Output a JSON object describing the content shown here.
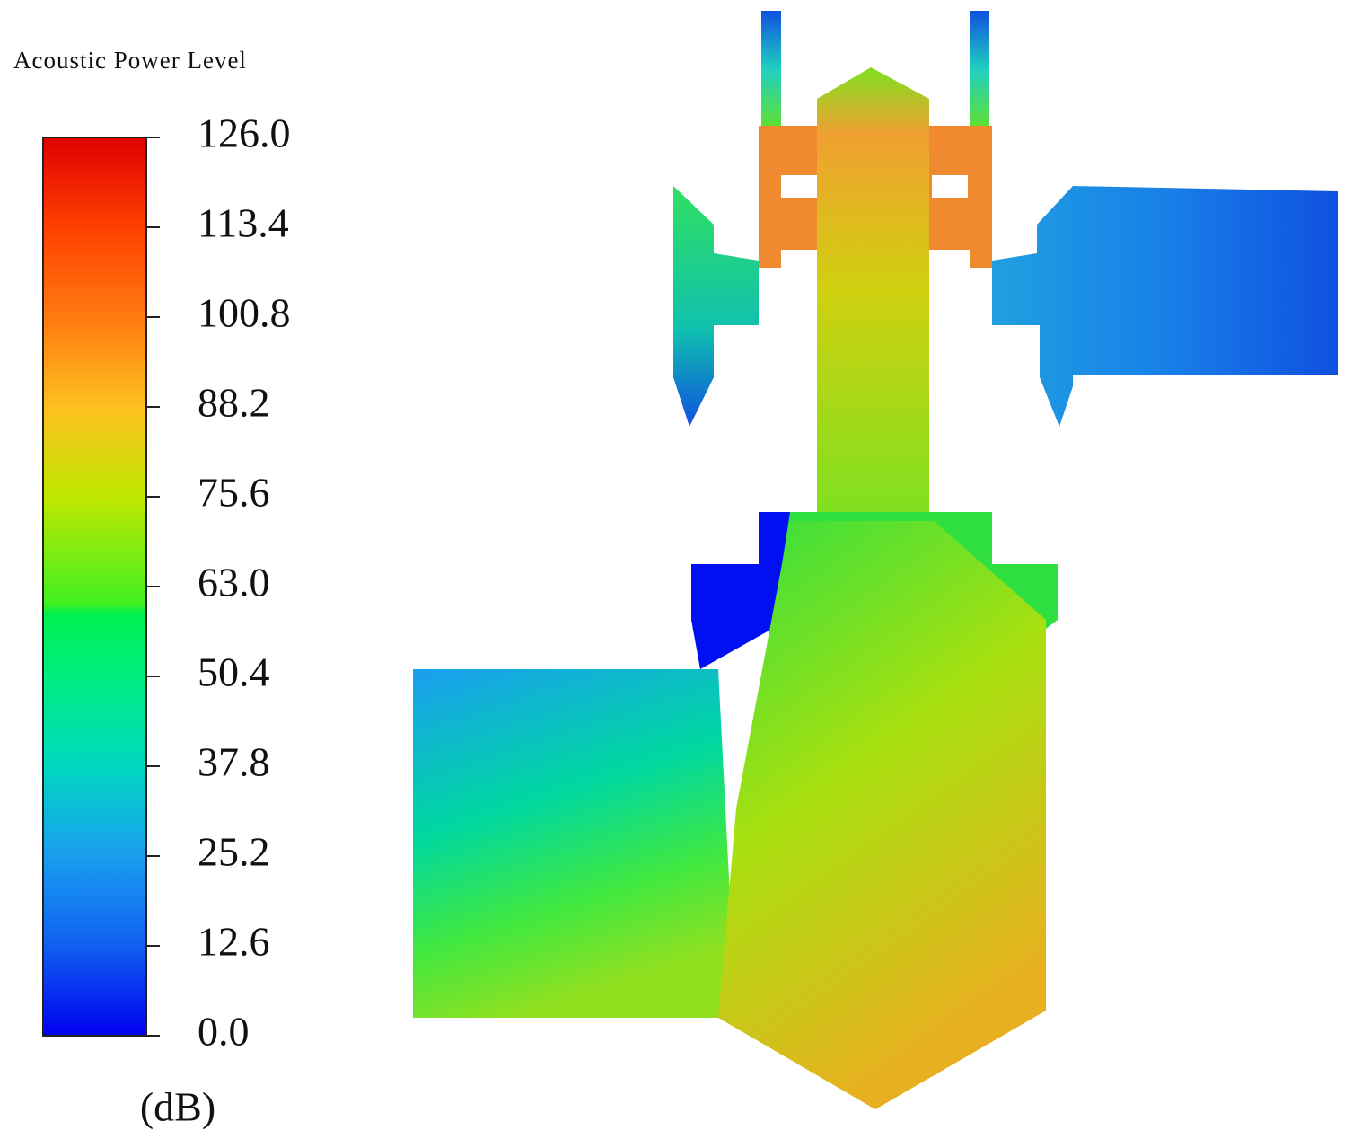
{
  "chart_data": {
    "type": "contour",
    "title": "Acoustic Power Level",
    "unit": "(dB)",
    "clim": [
      0,
      126
    ],
    "cticks": [
      {
        "value": 0,
        "label": "0.0"
      },
      {
        "value": 12.6,
        "label": "12.6"
      },
      {
        "value": 25.2,
        "label": "25.2"
      },
      {
        "value": 37.8,
        "label": "37.8"
      },
      {
        "value": 50.4,
        "label": "50.4"
      },
      {
        "value": 63,
        "label": "63.0"
      },
      {
        "value": 75.6,
        "label": "75.6"
      },
      {
        "value": 88.2,
        "label": "88.2"
      },
      {
        "value": 100.8,
        "label": "100.8"
      },
      {
        "value": 113.4,
        "label": "113.4"
      },
      {
        "value": 126,
        "label": "126.0"
      }
    ]
  }
}
